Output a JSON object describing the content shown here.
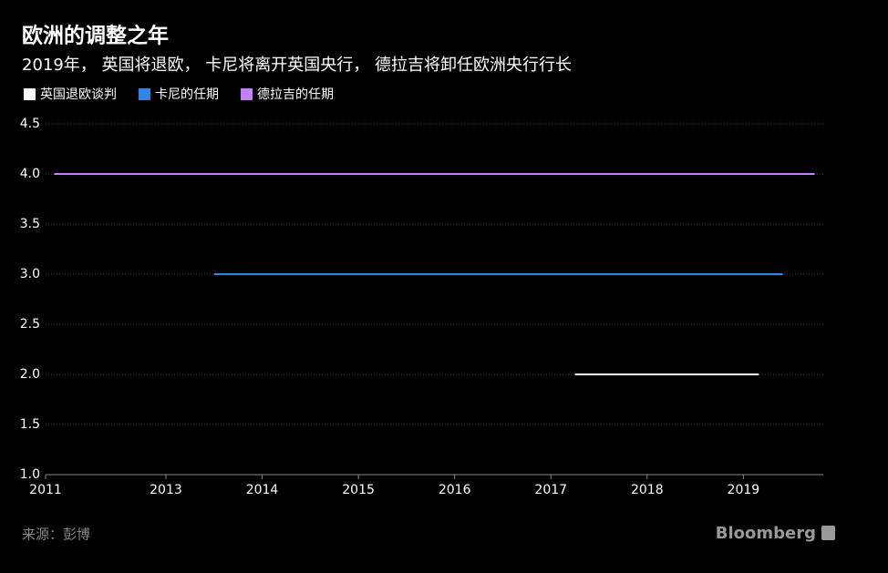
{
  "chart_data": {
    "type": "line",
    "title": "欧洲的调整之年",
    "subtitle": "2019年， 英国将退欧， 卡尼将离开英国央行， 德拉吉将卸任欧洲央行行长",
    "series": [
      {
        "name": "英国退欧谈判",
        "color": "#ffffff",
        "x": [
          2017.25,
          2019.16
        ],
        "values": [
          2,
          2
        ]
      },
      {
        "name": "卡尼的任期",
        "color": "#2e86e8",
        "x": [
          2013.5,
          2019.41
        ],
        "values": [
          3,
          3
        ]
      },
      {
        "name": "德拉吉的任期",
        "color": "#c77dff",
        "x": [
          2011.84,
          2019.74
        ],
        "values": [
          4,
          4
        ]
      }
    ],
    "xlim": [
      2011.75,
      2019.83
    ],
    "xticks": [
      {
        "value": 2011.75,
        "label": "2011"
      },
      2013,
      2014,
      2015,
      2016,
      2017,
      2018,
      2019
    ],
    "ylim": [
      1,
      4.5
    ],
    "yticks": [
      {
        "value": 1,
        "label": "1.0"
      },
      1.5,
      {
        "value": 2,
        "label": "2.0"
      },
      2.5,
      {
        "value": 3,
        "label": "3.0"
      },
      3.5,
      {
        "value": 4,
        "label": "4.0"
      },
      4.5
    ],
    "grid": true,
    "source": "来源：彭博",
    "brand": "Bloomberg"
  }
}
